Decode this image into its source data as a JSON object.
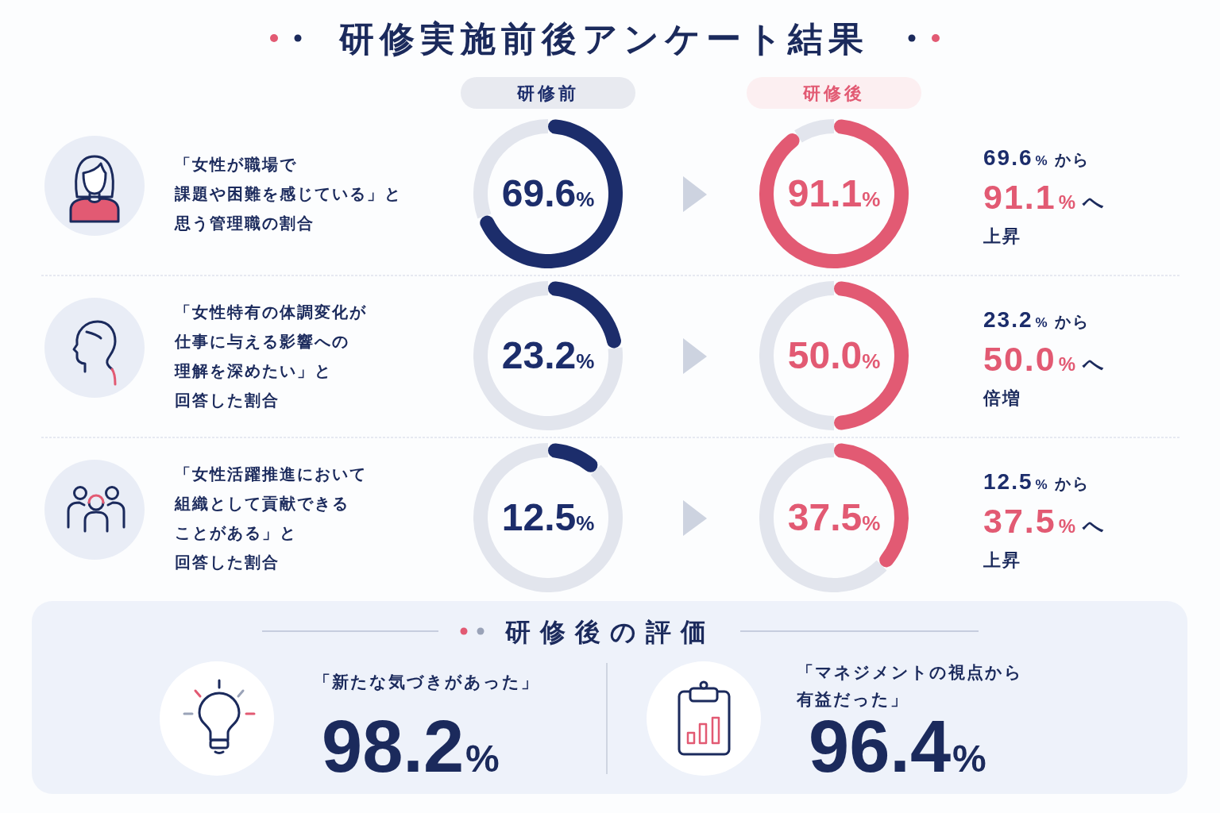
{
  "chart_data": [
    {
      "type": "other",
      "title": "研修実施前後アンケート結果"
    },
    {
      "type": "other",
      "annotations": [
        "「女性が職場で",
        "課題や困難を感じている」と",
        "思う管理職の割合"
      ]
    },
    {
      "type": "donut",
      "title": "研修前",
      "categories": [
        null,
        null
      ],
      "values": [
        69.6,
        30.4
      ],
      "colors": [
        "#1c2d6b",
        "#e2e5ed"
      ],
      "value_labels": [
        "69.6%",
        null
      ]
    },
    {
      "type": "donut",
      "title": "研修後",
      "categories": [
        null,
        null
      ],
      "values": [
        91.1,
        8.9
      ],
      "colors": [
        "#e25a73",
        "#e2e5ed"
      ],
      "value_labels": [
        "91.1%",
        null
      ]
    },
    {
      "type": "other",
      "annotations": [
        "69.6% から",
        "91.1% へ",
        "上昇"
      ]
    },
    {
      "type": "other",
      "annotations": [
        "「女性特有の体調変化が",
        "仕事に与える影響への",
        "理解を深めたい」と",
        "回答した割合"
      ]
    },
    {
      "type": "donut",
      "categories": [
        null,
        null
      ],
      "values": [
        23.2,
        76.8
      ],
      "colors": [
        "#1c2d6b",
        "#e2e5ed"
      ],
      "value_labels": [
        "23.2%",
        null
      ]
    },
    {
      "type": "donut",
      "categories": [
        null,
        null
      ],
      "values": [
        50.0,
        50.0
      ],
      "colors": [
        "#e25a73",
        "#e2e5ed"
      ],
      "value_labels": [
        "50.0%",
        null
      ]
    },
    {
      "type": "other",
      "annotations": [
        "23.2% から",
        "50.0% へ",
        "倍増"
      ]
    },
    {
      "type": "other",
      "annotations": [
        "「女性活躍推進において",
        "組織として貢献できる",
        "ことがある」と",
        "回答した割合"
      ]
    },
    {
      "type": "donut",
      "categories": [
        null,
        null
      ],
      "values": [
        12.5,
        87.5
      ],
      "colors": [
        "#1c2d6b",
        "#e2e5ed"
      ],
      "value_labels": [
        "12.5%",
        null
      ]
    },
    {
      "type": "donut",
      "categories": [
        null,
        null
      ],
      "values": [
        37.5,
        62.5
      ],
      "colors": [
        "#e25a73",
        "#e2e5ed"
      ],
      "value_labels": [
        "37.5%",
        null
      ]
    },
    {
      "type": "other",
      "annotations": [
        "12.5% から",
        "37.5% へ",
        "上昇"
      ]
    },
    {
      "type": "other",
      "title": "研修後の評価",
      "annotations": [
        "「新たな気づきがあった」",
        "98.2%",
        "「マネジメントの視点から",
        "有益だった」",
        "96.4%"
      ]
    }
  ]
}
